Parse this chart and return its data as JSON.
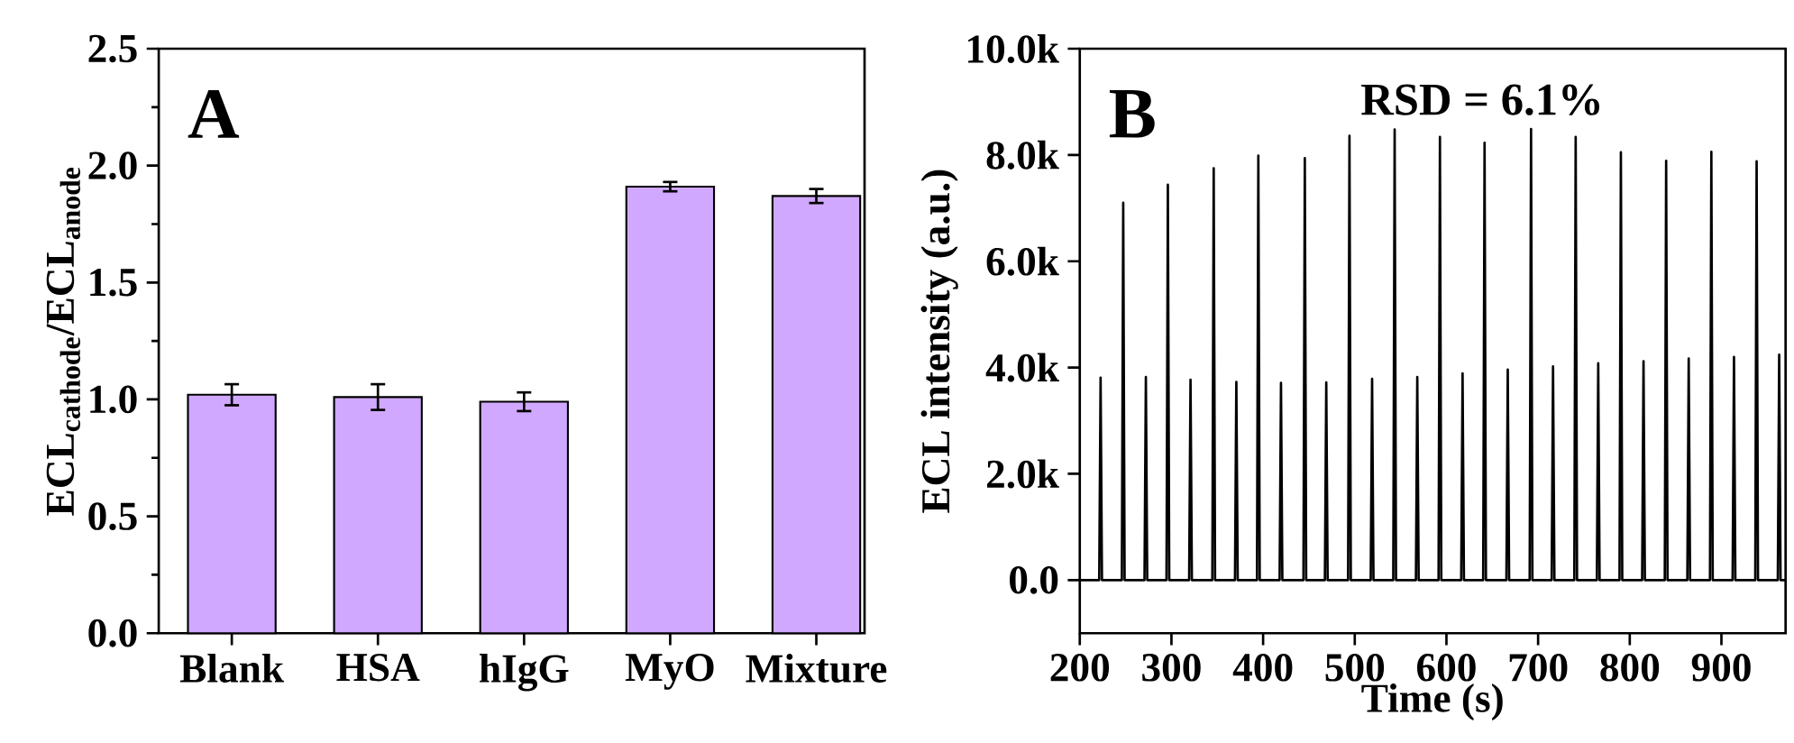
{
  "chart_data": [
    {
      "type": "bar",
      "ylabel": "ECL$_{cathode}$/ECL$_{anode}$",
      "annotations": [
        "A"
      ],
      "categories": [
        "Blank",
        "HSA",
        "hIgG",
        "MyO",
        "Mixture"
      ],
      "series": [
        {
          "color": "#d0a8ff",
          "values": [
            1.02,
            1.01,
            0.99,
            1.91,
            1.87
          ],
          "errors": [
            0.045,
            0.055,
            0.04,
            0.02,
            0.03
          ]
        }
      ],
      "ylim": [
        0,
        2.5
      ],
      "yticks": [
        {
          "value": 0,
          "label": "0.0"
        },
        {
          "value": 0.5,
          "label": "0.5"
        },
        {
          "value": 1,
          "label": "1.0"
        },
        {
          "value": 1.5,
          "label": "1.5"
        },
        {
          "value": 2,
          "label": "2.0"
        },
        {
          "value": 2.5,
          "label": "2.5"
        }
      ]
    },
    {
      "type": "line",
      "xlabel": "Time (s)",
      "ylabel": "ECL intensity (a.u.)",
      "annotations": [
        "B",
        "RSD = 6.1%"
      ],
      "xlim": [
        200,
        970
      ],
      "xticks": [
        200,
        300,
        400,
        500,
        600,
        700,
        800,
        900
      ],
      "ylim": [
        -1000,
        10000
      ],
      "yticks": [
        {
          "value": 0,
          "label": "0.0"
        },
        {
          "value": 2000,
          "label": "2.0k"
        },
        {
          "value": 4000,
          "label": "4.0k"
        },
        {
          "value": 6000,
          "label": "6.0k"
        },
        {
          "value": 8000,
          "label": "8.0k"
        },
        {
          "value": 10000,
          "label": "10.0k"
        }
      ],
      "series": [
        {
          "color": "#000000",
          "x": [
            200,
            221.2,
            222.7,
            224.2,
            245.9,
            247.4,
            248.9,
            270.6,
            272.1,
            273.6,
            294.6,
            296.1,
            297.6,
            319.3,
            320.8,
            322.3,
            344.6,
            346.1,
            347.6,
            369.3,
            370.8,
            372.3,
            393.3,
            394.8,
            396.3,
            418,
            419.5,
            421,
            444,
            445.5,
            447,
            467.4,
            468.9,
            470.4,
            492.7,
            494.2,
            495.7,
            517.4,
            518.9,
            520.4,
            542,
            543.5,
            545,
            566.7,
            568.2,
            569.7,
            591.4,
            592.9,
            594.4,
            616.1,
            617.6,
            619.1,
            640.1,
            641.6,
            643.1,
            665.4,
            666.9,
            668.4,
            690.8,
            692.3,
            693.8,
            714.8,
            716.3,
            717.8,
            739.5,
            741,
            742.5,
            764.1,
            765.6,
            767.1,
            788.8,
            790.3,
            791.8,
            813.5,
            815,
            816.5,
            838.2,
            839.7,
            841.2,
            862.8,
            864.3,
            865.8,
            887.5,
            889,
            890.5,
            912.2,
            913.7,
            915.2,
            936.9,
            938.4,
            939.9,
            961.5,
            963,
            964.5,
            970
          ],
          "values": [
            0,
            0,
            3810,
            0,
            0,
            7100,
            0,
            0,
            3820,
            0,
            0,
            7440,
            0,
            0,
            3770,
            0,
            0,
            7750,
            0,
            0,
            3730,
            0,
            0,
            7990,
            0,
            0,
            3710,
            0,
            0,
            7940,
            0,
            0,
            3720,
            0,
            0,
            8360,
            0,
            0,
            3790,
            0,
            0,
            8480,
            0,
            0,
            3820,
            0,
            0,
            8340,
            0,
            0,
            3890,
            0,
            0,
            8230,
            0,
            0,
            3960,
            0,
            0,
            8490,
            0,
            0,
            4020,
            0,
            0,
            8340,
            0,
            0,
            4080,
            0,
            0,
            8050,
            0,
            0,
            4120,
            0,
            0,
            7890,
            0,
            0,
            4170,
            0,
            0,
            8060,
            0,
            0,
            4200,
            0,
            0,
            7880,
            0,
            0,
            4240,
            0,
            0
          ]
        }
      ]
    }
  ]
}
